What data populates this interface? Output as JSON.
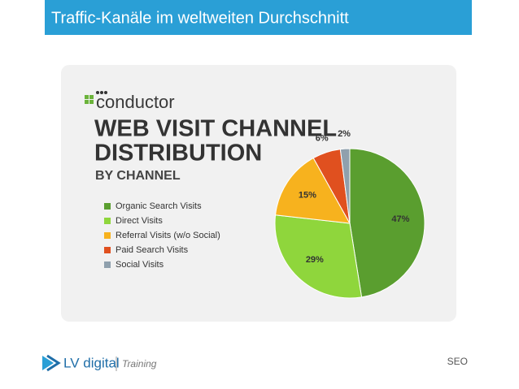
{
  "header": {
    "title": "Traffic-Kanäle im weltweiten Durchschnitt"
  },
  "chart_data": {
    "type": "pie",
    "brand": "conductor",
    "title_lines": [
      "WEB VISIT CHANNEL",
      "DISTRIBUTION"
    ],
    "subtitle": "BY CHANNEL",
    "categories": [
      "Organic Search Visits",
      "Direct Visits",
      "Referral Visits (w/o Social)",
      "Paid Search Visits",
      "Social Visits"
    ],
    "values": [
      47,
      29,
      15,
      6,
      2
    ],
    "value_labels": [
      "47%",
      "29%",
      "15%",
      "6%",
      "2%"
    ],
    "colors": [
      "#5a9e2f",
      "#8fd63c",
      "#f7b21e",
      "#e0501f",
      "#8fa0ad"
    ]
  },
  "footer": {
    "brand": "LV digital",
    "tag": "Training",
    "section": "SEO"
  }
}
